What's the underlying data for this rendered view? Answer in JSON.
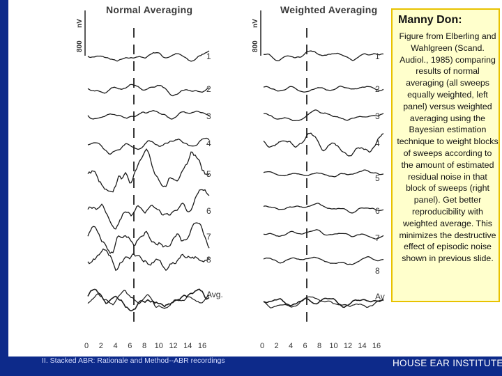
{
  "panels": {
    "left": {
      "title": "Normal Averaging",
      "scale_label": "800",
      "unit_label": "nV",
      "trace_labels": [
        "1",
        "2",
        "3",
        "4",
        "5",
        "6",
        "7",
        "8",
        "Avg."
      ],
      "x_ticks": [
        "0",
        "2",
        "4",
        "6",
        "8",
        "10",
        "12",
        "14",
        "16"
      ]
    },
    "right": {
      "title": "Weighted Averaging",
      "scale_label": "800",
      "unit_label": "nV",
      "trace_labels": [
        "1",
        "2",
        "3",
        "4",
        "5",
        "6",
        "7",
        "8",
        "Av"
      ],
      "x_ticks": [
        "0",
        "2",
        "4",
        "6",
        "8",
        "10",
        "12",
        "14",
        "16"
      ]
    }
  },
  "note": {
    "title": "Manny Don:",
    "body": "Figure from Elberling and Wahlgreen (Scand. Audiol., 1985) comparing results of normal averaging (all sweeps equally weighted, left panel) versus weighted averaging using the Bayesian estimation technique to weight blocks of sweeps according to the amount of estimated residual noise in that block of sweeps (right panel).  Get better reproducibility with weighted average.  This minimizes the destructive effect of episodic noise shown in previous slide."
  },
  "footer": {
    "left": "II. Stacked ABR: Rationale and Method--ABR recordings",
    "right": "HOUSE EAR INSTITUTE"
  },
  "colors": {
    "background_band": "#0d2a8a",
    "note_fill": "#ffffcc",
    "note_border": "#e8c200"
  }
}
